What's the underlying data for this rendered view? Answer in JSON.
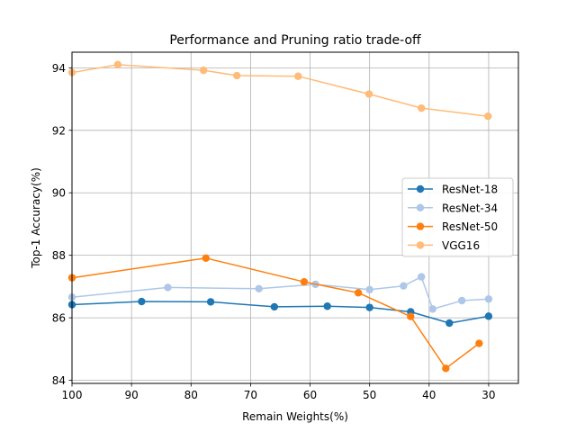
{
  "chart_data": {
    "type": "line",
    "title": "Performance and Pruning ratio trade-off",
    "xlabel": "Remain Weights(%)",
    "ylabel": "Top-1 Accuracy(%)",
    "xlim": [
      100,
      25
    ],
    "ylim": [
      83.9,
      94.5
    ],
    "x_inverted": true,
    "grid": true,
    "legend_position": "center-right",
    "x_ticks": [
      100,
      90,
      80,
      70,
      60,
      50,
      40,
      30
    ],
    "y_ticks": [
      84,
      86,
      88,
      90,
      92,
      94
    ],
    "series": [
      {
        "name": "ResNet-18",
        "color": "#1f77b4",
        "x": [
          100,
          88.3,
          76.7,
          66,
          57.1,
          50,
          43.1,
          36.6,
          30
        ],
        "y": [
          86.42,
          86.52,
          86.51,
          86.35,
          86.37,
          86.33,
          86.19,
          85.83,
          86.05
        ]
      },
      {
        "name": "ResNet-34",
        "color": "#aec7e8",
        "x": [
          100,
          83.9,
          68.6,
          59.1,
          50,
          44.3,
          41.3,
          39.4,
          34.5,
          30
        ],
        "y": [
          86.66,
          86.97,
          86.93,
          87.07,
          86.9,
          87.02,
          87.31,
          86.28,
          86.55,
          86.6
        ]
      },
      {
        "name": "ResNet-50",
        "color": "#ff7f0e",
        "x": [
          100,
          77.5,
          61,
          51.9,
          43.1,
          37.2,
          31.6
        ],
        "y": [
          87.28,
          87.91,
          87.15,
          86.8,
          86.04,
          84.38,
          85.18
        ]
      },
      {
        "name": "VGG16",
        "color": "#ffbb78",
        "x": [
          100,
          92.3,
          77.9,
          72.3,
          62,
          50.1,
          41.3,
          30.1
        ],
        "y": [
          93.85,
          94.1,
          93.92,
          93.75,
          93.73,
          93.16,
          92.71,
          92.45
        ]
      }
    ]
  }
}
